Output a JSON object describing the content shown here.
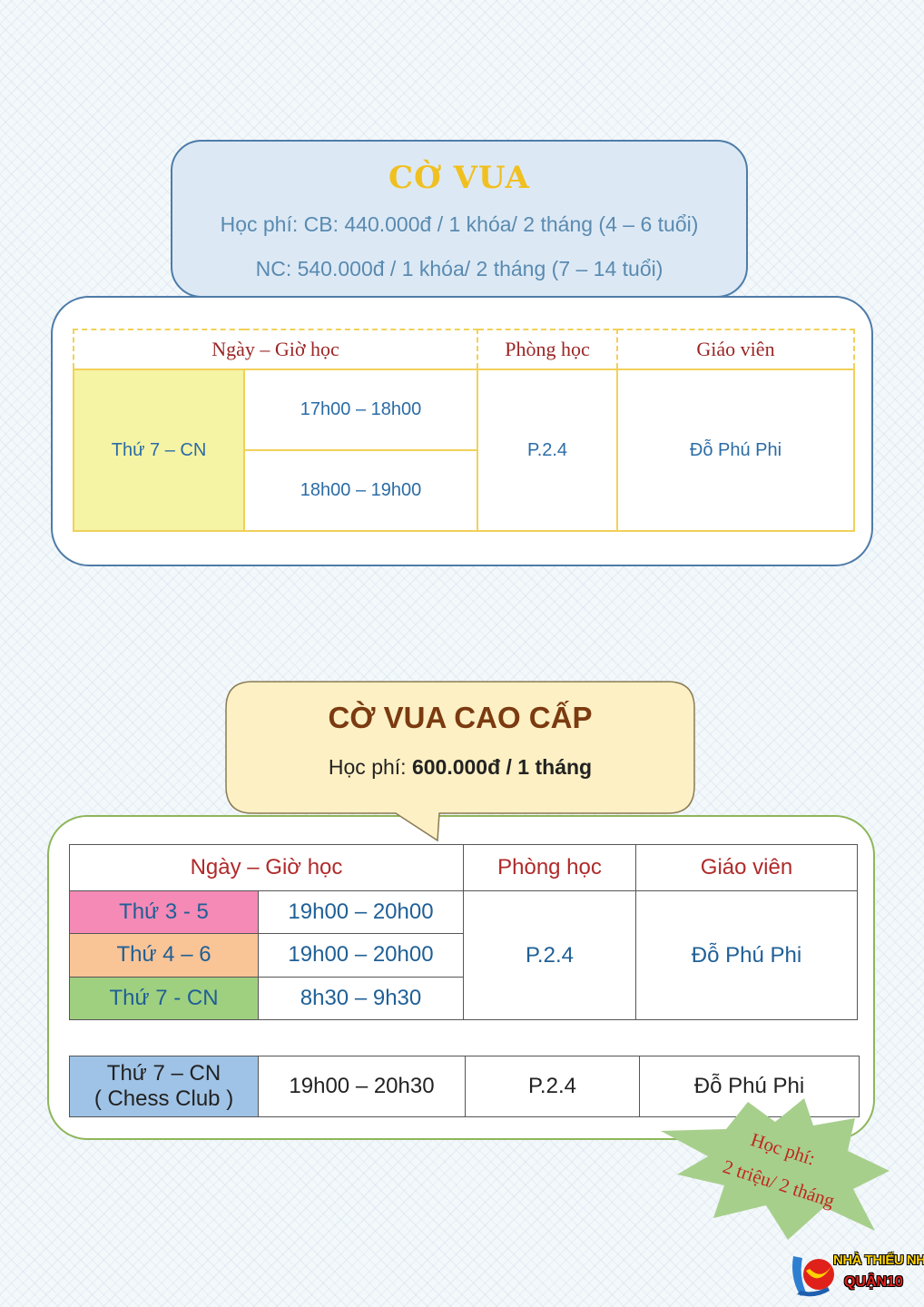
{
  "section1": {
    "title": "CỜ VUA",
    "fee_line1": "Học phí: CB: 440.000đ / 1 khóa/ 2 tháng (4 – 6 tuổi)",
    "fee_line2": "NC: 540.000đ / 1 khóa/ 2 tháng (7 – 14 tuổi)",
    "table": {
      "headers": [
        "Ngày – Giờ học",
        "Phòng học",
        "Giáo viên"
      ],
      "day": "Thứ 7 – CN",
      "times": [
        "17h00 – 18h00",
        "18h00 – 19h00"
      ],
      "room": "P.2.4",
      "teacher": "Đỗ Phú Phi"
    }
  },
  "section2": {
    "title": "CỜ VUA CAO CẤP",
    "fee_label": "Học phí: ",
    "fee_value": "600.000đ / 1 tháng",
    "table": {
      "headers": [
        "Ngày – Giờ học",
        "Phòng học",
        "Giáo viên"
      ],
      "rows": [
        {
          "day": "Thứ 3 - 5",
          "time": "19h00 – 20h00",
          "color": "#f48ab5"
        },
        {
          "day": "Thứ 4 – 6",
          "time": "19h00 – 20h00",
          "color": "#f9c496"
        },
        {
          "day": "Thứ 7 - CN",
          "time": "8h30 – 9h30",
          "color": "#9fd07f"
        }
      ],
      "room": "P.2.4",
      "teacher": "Đỗ Phú Phi"
    },
    "club": {
      "day_line1": "Thứ 7 – CN",
      "day_line2": "( Chess Club )",
      "time": "19h00 – 20h30",
      "room": "P.2.4",
      "teacher": "Đỗ Phú Phi"
    }
  },
  "badge": {
    "line1": "Học phí:",
    "line2": "2 triệu/ 2 tháng"
  },
  "logo": {
    "name": "NHÀ THIẾU NHI",
    "district": "QUẬN10"
  },
  "colors": {
    "chess_title": "#f0c020",
    "advanced_title": "#7b3a10",
    "header_text": "#9b2525",
    "cell_text": "#2b6ca6",
    "badge_fill": "#a7cf8c"
  }
}
